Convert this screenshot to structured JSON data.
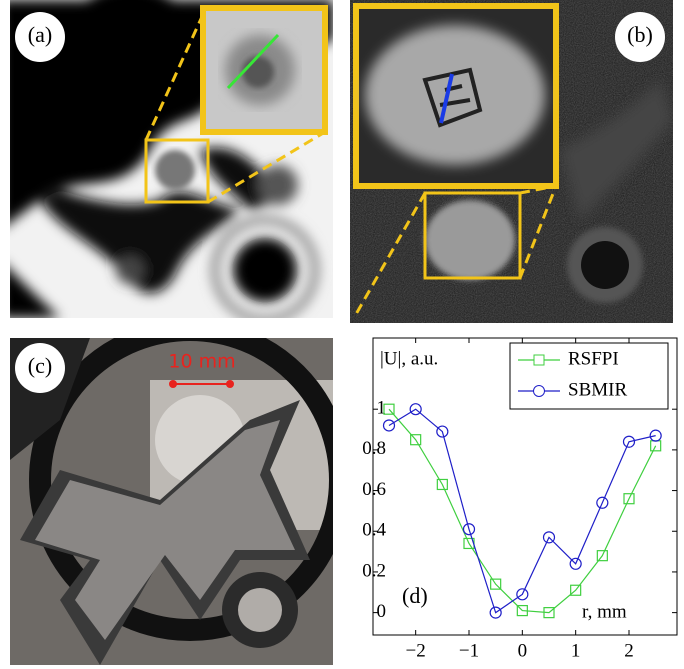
{
  "panel_labels": [
    "(a)",
    "(b)",
    "(c)"
  ],
  "scale_bar": "10 mm",
  "chart_data": {
    "type": "line",
    "panel_label": "(d)",
    "ylabel": "|U|, a.u.",
    "xlabel": "r, mm",
    "x": [
      -2.5,
      -2,
      -1.5,
      -1,
      -0.5,
      0,
      0.5,
      1,
      1.5,
      2,
      2.5
    ],
    "series": [
      {
        "name": "RSFPI",
        "color": "#3fcf3f",
        "marker": "square",
        "values": [
          1.0,
          0.85,
          0.63,
          0.34,
          0.14,
          0.01,
          0.0,
          0.11,
          0.28,
          0.56,
          0.82
        ]
      },
      {
        "name": "SBMIR",
        "color": "#1f1fc8",
        "marker": "circle",
        "values": [
          0.92,
          1.0,
          0.89,
          0.41,
          0.0,
          0.09,
          0.37,
          0.24,
          0.54,
          0.84,
          0.87
        ]
      }
    ],
    "xlim": [
      -2.8,
      2.9
    ],
    "ylim": [
      -0.11,
      1.35
    ],
    "xticks": [
      {
        "value": -2,
        "label": "−2"
      },
      {
        "value": -1,
        "label": "−1"
      },
      0,
      1,
      2
    ],
    "yticks": [
      0,
      0.2,
      0.4,
      0.6,
      0.8,
      1
    ],
    "legend": "top-right"
  }
}
